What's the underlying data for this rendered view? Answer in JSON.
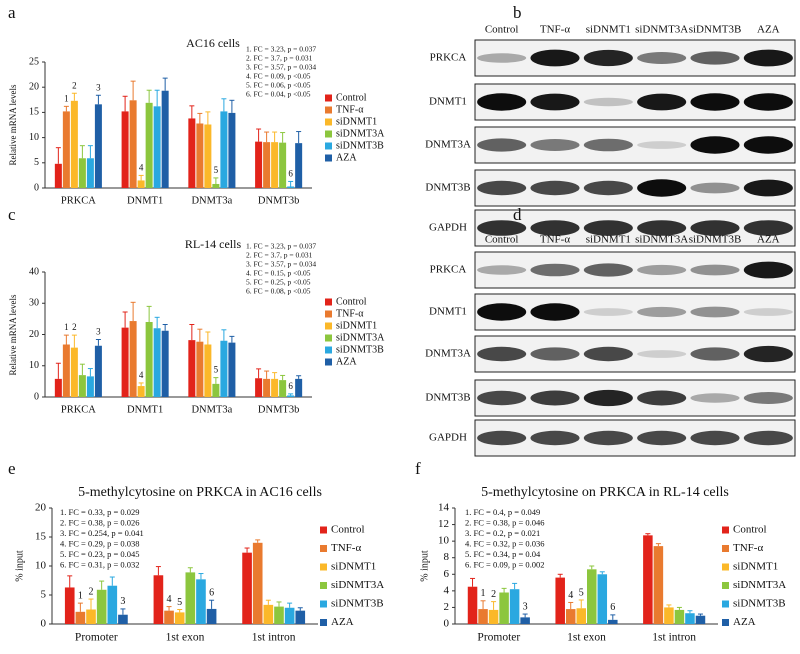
{
  "chart_data": [
    {
      "type": "bar",
      "panel": "a",
      "title": "AC16 cells",
      "ylabel": "Relative mRNA levels",
      "categories": [
        "PRKCA",
        "DNMT1",
        "DNMT3a",
        "DNMT3b"
      ],
      "ylim": [
        0,
        25
      ],
      "yticks": [
        0,
        5,
        10,
        15,
        20,
        25
      ],
      "annotations": [
        "1. FC = 3.23, p = 0.037",
        "2. FC = 3.7, p = 0.031",
        "3. FC = 3.57, p = 0.034",
        "4. FC = 0.09, p <0.05",
        "5. FC = 0.06, p <0.05",
        "6. FC = 0.04, p <0.05"
      ],
      "series": [
        {
          "name": "Control",
          "color": "#e2231a",
          "values": [
            4.8,
            15.2,
            13.8,
            9.2
          ],
          "errors": [
            3.2,
            3,
            2.5,
            2.5
          ],
          "notes": [
            null,
            null,
            null,
            null
          ]
        },
        {
          "name": "TNF-α",
          "color": "#e97a2f",
          "values": [
            15.2,
            17.4,
            12.8,
            9.1
          ],
          "errors": [
            1,
            3.8,
            2,
            2
          ],
          "notes": [
            "1",
            null,
            null,
            null
          ]
        },
        {
          "name": "siDNMT1",
          "color": "#fbb829",
          "values": [
            17.3,
            1.5,
            12.6,
            9.1
          ],
          "errors": [
            1.5,
            1,
            2.5,
            2
          ],
          "notes": [
            "2",
            "4",
            null,
            null
          ]
        },
        {
          "name": "siDNMT3A",
          "color": "#8cc63e",
          "values": [
            5.9,
            16.9,
            0.8,
            9.0
          ],
          "errors": [
            2.5,
            2.5,
            1.2,
            2
          ],
          "notes": [
            null,
            null,
            "5",
            null
          ]
        },
        {
          "name": "siDNMT3B",
          "color": "#2aa8e0",
          "values": [
            5.9,
            16.2,
            15.2,
            0.3
          ],
          "errors": [
            2.5,
            3.2,
            2.5,
            1
          ],
          "notes": [
            null,
            null,
            null,
            "6"
          ]
        },
        {
          "name": "AZA",
          "color": "#1f5fa6",
          "values": [
            16.6,
            19.3,
            14.9,
            8.9
          ],
          "errors": [
            1.8,
            2.5,
            2.5,
            2.3
          ],
          "notes": [
            "3",
            null,
            null,
            null
          ]
        }
      ]
    },
    {
      "type": "bar",
      "panel": "c",
      "title": "RL-14 cells",
      "ylabel": "Relative mRNA levels",
      "categories": [
        "PRKCA",
        "DNMT1",
        "DNMT3a",
        "DNMT3b"
      ],
      "ylim": [
        0,
        40
      ],
      "yticks": [
        0,
        10,
        20,
        30,
        40
      ],
      "annotations": [
        "1. FC = 3.23, p = 0.037",
        "2. FC = 3.7, p = 0.031",
        "3. FC = 3.57, p = 0.034",
        "4. FC = 0.15, p <0.05",
        "5. FC = 0.25, p <0.05",
        "6. FC = 0.08, p <0.05"
      ],
      "series": [
        {
          "name": "Control",
          "color": "#e2231a",
          "values": [
            5.8,
            22.2,
            18.2,
            6
          ],
          "errors": [
            5,
            5,
            5,
            3
          ],
          "notes": [
            null,
            null,
            null,
            null
          ]
        },
        {
          "name": "TNF-α",
          "color": "#e97a2f",
          "values": [
            16.8,
            24.3,
            17.7,
            5.8
          ],
          "errors": [
            3,
            6,
            4,
            2.5
          ],
          "notes": [
            "1",
            null,
            null,
            null
          ]
        },
        {
          "name": "siDNMT1",
          "color": "#fbb829",
          "values": [
            15.8,
            3.5,
            16.8,
            5.8
          ],
          "errors": [
            4,
            1,
            4,
            2
          ],
          "notes": [
            "2",
            "4",
            null,
            null
          ]
        },
        {
          "name": "siDNMT3A",
          "color": "#8cc63e",
          "values": [
            7,
            24,
            4.2,
            5.4
          ],
          "errors": [
            3.5,
            5,
            2,
            1.5
          ],
          "notes": [
            null,
            null,
            "5",
            null
          ]
        },
        {
          "name": "siDNMT3B",
          "color": "#2aa8e0",
          "values": [
            6.6,
            22,
            18,
            0.5
          ],
          "errors": [
            2.5,
            3.5,
            3.5,
            0.5
          ],
          "notes": [
            null,
            null,
            null,
            "6"
          ]
        },
        {
          "name": "AZA",
          "color": "#1f5fa6",
          "values": [
            16.4,
            21.2,
            17.4,
            5.8
          ],
          "errors": [
            2,
            2,
            2,
            1
          ],
          "notes": [
            "3",
            null,
            null,
            null
          ]
        }
      ]
    },
    {
      "type": "bar",
      "panel": "e",
      "title": "5-methylcytosine on PRKCA in AC16 cells",
      "ylabel": "% input",
      "categories": [
        "Promoter",
        "1st exon",
        "1st intron"
      ],
      "ylim": [
        0,
        20
      ],
      "yticks": [
        0,
        5,
        10,
        15,
        20
      ],
      "annotations": [
        "1. FC = 0.33, p = 0.029",
        "2. FC = 0.38, p = 0.026",
        "3. FC = 0.254, p = 0.041",
        "4. FC = 0.29, p = 0.038",
        "5. FC = 0.23, p = 0.045",
        "6. FC = 0.31, p = 0.032"
      ],
      "series": [
        {
          "name": "Control",
          "color": "#e2231a",
          "values": [
            6.3,
            8.4,
            12.3
          ],
          "errors": [
            2,
            1.5,
            0.8
          ],
          "notes": [
            null,
            null,
            null
          ]
        },
        {
          "name": "TNF-α",
          "color": "#e97a2f",
          "values": [
            2.1,
            2.3,
            14
          ],
          "errors": [
            1.5,
            0.7,
            0.5
          ],
          "notes": [
            "1",
            "4",
            null
          ]
        },
        {
          "name": "siDNMT1",
          "color": "#fbb829",
          "values": [
            2.5,
            2.0,
            3.3
          ],
          "errors": [
            1.8,
            0.5,
            0.8
          ],
          "notes": [
            "2",
            "5",
            null
          ]
        },
        {
          "name": "siDNMT3A",
          "color": "#8cc63e",
          "values": [
            5.9,
            8.9,
            3.0
          ],
          "errors": [
            1.5,
            0.8,
            0.8
          ],
          "notes": [
            null,
            null,
            null
          ]
        },
        {
          "name": "siDNMT3B",
          "color": "#2aa8e0",
          "values": [
            6.6,
            7.7,
            2.8
          ],
          "errors": [
            1.5,
            1,
            0.8
          ],
          "notes": [
            null,
            null,
            null
          ]
        },
        {
          "name": "AZA",
          "color": "#1f5fa6",
          "values": [
            1.6,
            2.6,
            2.3
          ],
          "errors": [
            1,
            1.5,
            0.5
          ],
          "notes": [
            "3",
            "6",
            null
          ]
        }
      ]
    },
    {
      "type": "bar",
      "panel": "f",
      "title": "5-methylcytosine on PRKCA in RL-14 cells",
      "ylabel": "% input",
      "categories": [
        "Promoter",
        "1st exon",
        "1st intron"
      ],
      "ylim": [
        0,
        14
      ],
      "yticks": [
        0,
        2,
        4,
        6,
        8,
        10,
        12,
        14
      ],
      "annotations": [
        "1. FC = 0.4, p = 0.049",
        "2. FC = 0.38, p = 0.046",
        "3. FC = 0.2, p = 0.021",
        "4. FC = 0.32, p = 0.036",
        "5. FC = 0.34, p = 0.04",
        "6. FC = 0.09, p = 0.002"
      ],
      "series": [
        {
          "name": "Control",
          "color": "#e2231a",
          "values": [
            4.5,
            5.6,
            10.7
          ],
          "errors": [
            1,
            0.4,
            0.2
          ],
          "notes": [
            null,
            null,
            null
          ]
        },
        {
          "name": "TNF-α",
          "color": "#e97a2f",
          "values": [
            1.8,
            1.8,
            9.4
          ],
          "errors": [
            1,
            0.8,
            0.3
          ],
          "notes": [
            "1",
            "4",
            null
          ]
        },
        {
          "name": "siDNMT1",
          "color": "#fbb829",
          "values": [
            1.7,
            1.9,
            2.0
          ],
          "errors": [
            1,
            1,
            0.3
          ],
          "notes": [
            "2",
            "5",
            null
          ]
        },
        {
          "name": "siDNMT3A",
          "color": "#8cc63e",
          "values": [
            3.8,
            6.6,
            1.7
          ],
          "errors": [
            0.5,
            0.4,
            0.3
          ],
          "notes": [
            null,
            null,
            null
          ]
        },
        {
          "name": "siDNMT3B",
          "color": "#2aa8e0",
          "values": [
            4.2,
            6.0,
            1.3
          ],
          "errors": [
            0.7,
            0.3,
            0.3
          ],
          "notes": [
            null,
            null,
            null
          ]
        },
        {
          "name": "AZA",
          "color": "#1f5fa6",
          "values": [
            0.8,
            0.5,
            1.0
          ],
          "errors": [
            0.4,
            0.6,
            0.2
          ],
          "notes": [
            "3",
            "6",
            null
          ]
        }
      ]
    }
  ],
  "blots": [
    {
      "panel": "b",
      "lanes": [
        "Control",
        "TNF-α",
        "siDNMT1",
        "siDNMT3A",
        "siDNMT3B",
        "AZA"
      ],
      "proteins": [
        "PRKCA",
        "DNMT1",
        "DNMT3A",
        "DNMT3B",
        "GAPDH"
      ]
    },
    {
      "panel": "d",
      "lanes": [
        "Control",
        "TNF-α",
        "siDNMT1",
        "siDNMT3A",
        "siDNMT3B",
        "AZA"
      ],
      "proteins": [
        "PRKCA",
        "DNMT1",
        "DNMT3A",
        "DNMT3B",
        "GAPDH"
      ]
    }
  ]
}
